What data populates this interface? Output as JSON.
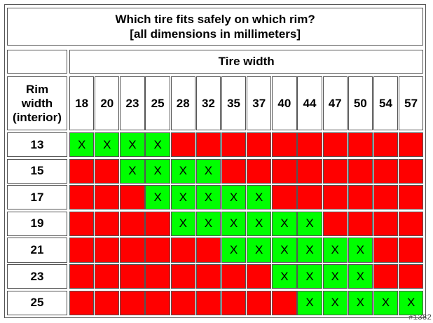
{
  "title_line1": "Which tire fits safely on which rim?",
  "title_line2": "[all dimensions in millimeters]",
  "column_header": "Tire width",
  "row_header": [
    "Rim",
    "width",
    "(interior)"
  ],
  "tire_widths": [
    "18",
    "20",
    "23",
    "25",
    "28",
    "32",
    "35",
    "37",
    "40",
    "44",
    "47",
    "50",
    "54",
    "57"
  ],
  "rows": [
    {
      "rim": "13",
      "fits": [
        1,
        1,
        1,
        1,
        0,
        0,
        0,
        0,
        0,
        0,
        0,
        0,
        0,
        0
      ]
    },
    {
      "rim": "15",
      "fits": [
        0,
        0,
        1,
        1,
        1,
        1,
        0,
        0,
        0,
        0,
        0,
        0,
        0,
        0
      ]
    },
    {
      "rim": "17",
      "fits": [
        0,
        0,
        0,
        1,
        1,
        1,
        1,
        1,
        0,
        0,
        0,
        0,
        0,
        0
      ]
    },
    {
      "rim": "19",
      "fits": [
        0,
        0,
        0,
        0,
        1,
        1,
        1,
        1,
        1,
        1,
        0,
        0,
        0,
        0
      ]
    },
    {
      "rim": "21",
      "fits": [
        0,
        0,
        0,
        0,
        0,
        0,
        1,
        1,
        1,
        1,
        1,
        1,
        0,
        0
      ]
    },
    {
      "rim": "23",
      "fits": [
        0,
        0,
        0,
        0,
        0,
        0,
        0,
        0,
        1,
        1,
        1,
        1,
        0,
        0
      ]
    },
    {
      "rim": "25",
      "fits": [
        0,
        0,
        0,
        0,
        0,
        0,
        0,
        0,
        0,
        1,
        1,
        1,
        1,
        1
      ]
    }
  ],
  "fit_mark": "X",
  "colors": {
    "fits": "#00ff00",
    "no_fit": "#ff0000"
  },
  "watermark": "#1382"
}
